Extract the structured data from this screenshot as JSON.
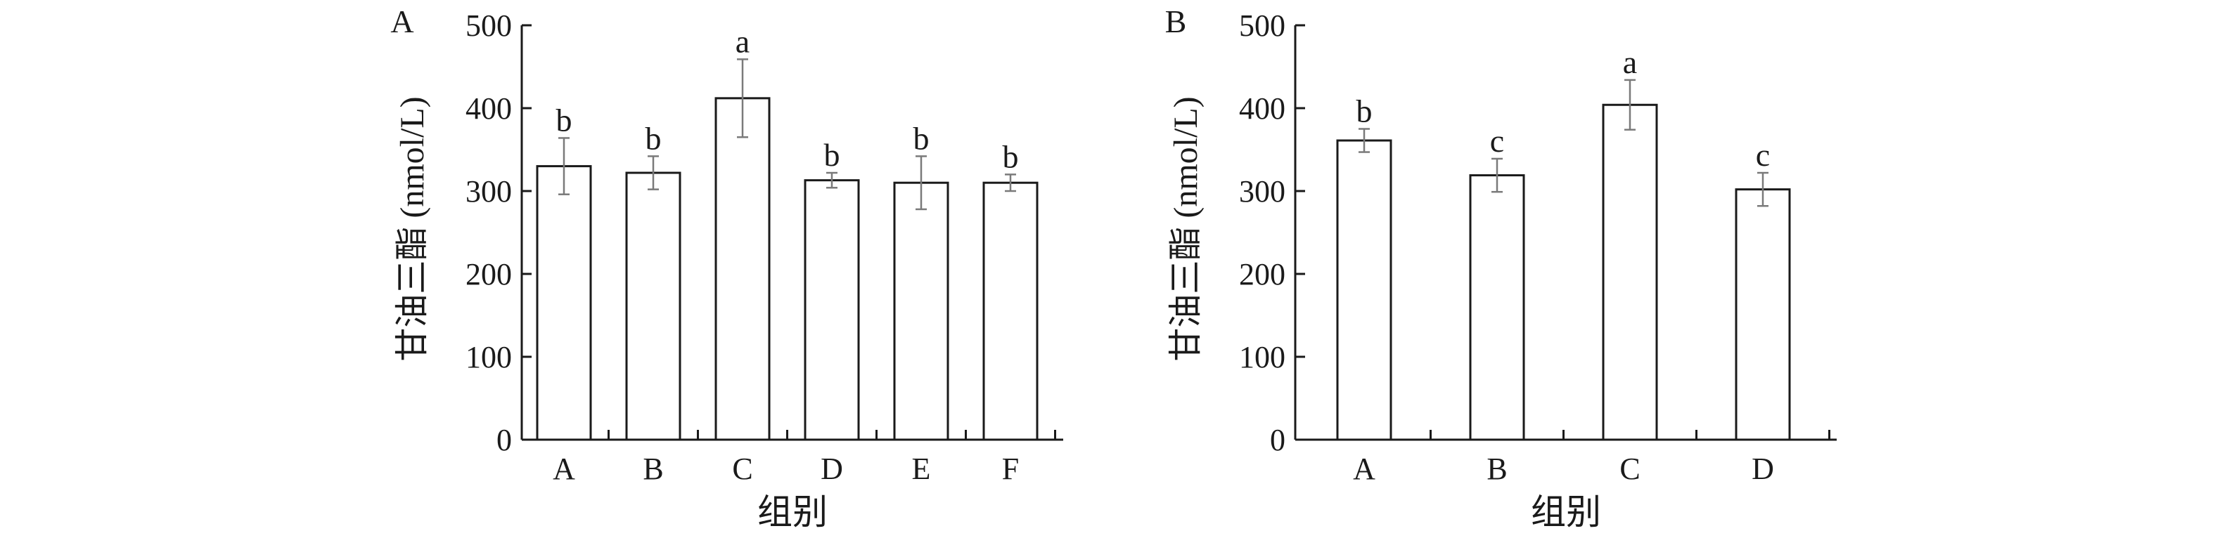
{
  "chart_data": [
    {
      "type": "bar",
      "panel_label": "A",
      "title": "",
      "xlabel": "组别",
      "ylabel": "甘油三酯 (nmol/L)",
      "ylim": [
        0,
        500
      ],
      "yticks": [
        0,
        100,
        200,
        300,
        400,
        500
      ],
      "categories": [
        "A",
        "B",
        "C",
        "D",
        "E",
        "F"
      ],
      "values": [
        330,
        322,
        412,
        313,
        310,
        310
      ],
      "error": [
        34,
        20,
        47,
        9,
        32,
        10
      ],
      "significance": [
        "b",
        "b",
        "a",
        "b",
        "b",
        "b"
      ],
      "grid": false,
      "bar_color": "#ffffff",
      "edge_color": "#1a1a1a",
      "error_color": "#7a7a7a"
    },
    {
      "type": "bar",
      "panel_label": "B",
      "title": "",
      "xlabel": "组别",
      "ylabel": "甘油三酯 (nmol/L)",
      "ylim": [
        0,
        500
      ],
      "yticks": [
        0,
        100,
        200,
        300,
        400,
        500
      ],
      "categories": [
        "A",
        "B",
        "C",
        "D"
      ],
      "values": [
        361,
        319,
        404,
        302
      ],
      "error": [
        14,
        20,
        30,
        20
      ],
      "significance": [
        "b",
        "c",
        "a",
        "c"
      ],
      "grid": false,
      "bar_color": "#ffffff",
      "edge_color": "#1a1a1a",
      "error_color": "#7a7a7a"
    }
  ]
}
